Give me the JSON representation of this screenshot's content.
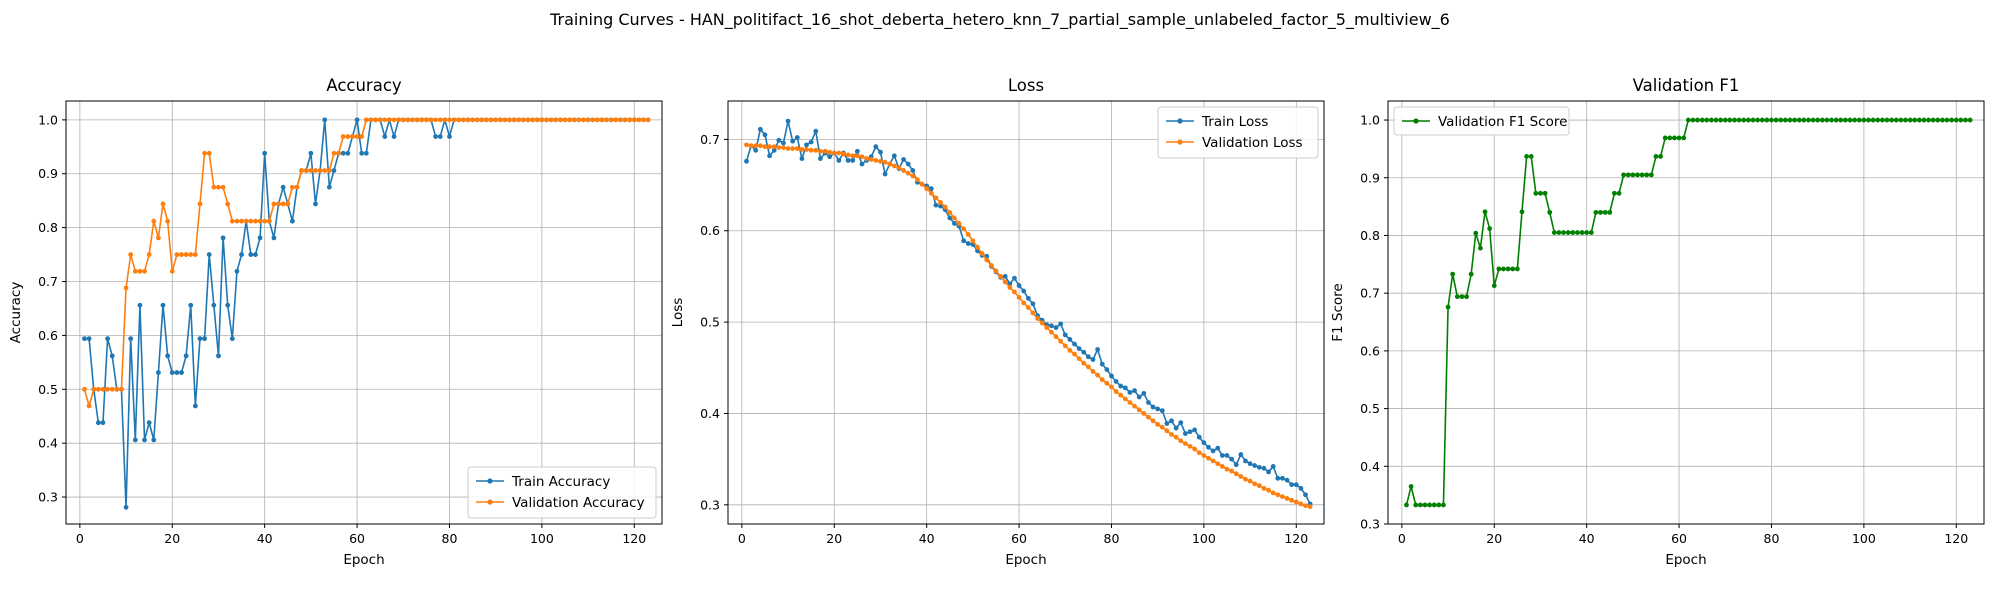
{
  "suptitle": "Training Curves - HAN_politifact_16_shot_deberta_hetero_knn_7_partial_sample_unlabeled_factor_5_multiview_6",
  "chart_data": [
    {
      "type": "line",
      "title": "Accuracy",
      "xlabel": "Epoch",
      "ylabel": "Accuracy",
      "xlim": [
        -3,
        126
      ],
      "ylim": [
        0.25,
        1.035
      ],
      "xticks": [
        0,
        20,
        40,
        60,
        80,
        100,
        120
      ],
      "yticks": [
        0.3,
        0.4,
        0.5,
        0.6,
        0.7,
        0.8,
        0.9,
        1.0
      ],
      "grid": true,
      "legend": "lower-right",
      "x": [
        1,
        2,
        3,
        4,
        5,
        6,
        7,
        8,
        9,
        10,
        11,
        12,
        13,
        14,
        15,
        16,
        17,
        18,
        19,
        20,
        21,
        22,
        23,
        24,
        25,
        26,
        27,
        28,
        29,
        30,
        31,
        32,
        33,
        34,
        35,
        36,
        37,
        38,
        39,
        40,
        41,
        42,
        43,
        44,
        45,
        46,
        47,
        48,
        49,
        50,
        51,
        52,
        53,
        54,
        55,
        56,
        57,
        58,
        59,
        60,
        61,
        62,
        63,
        64,
        65,
        66,
        67,
        68,
        69,
        70,
        71,
        72,
        73,
        74,
        75,
        76,
        77,
        78,
        79,
        80,
        81,
        82,
        83,
        84,
        85,
        86,
        87,
        88,
        89,
        90,
        91,
        92,
        93,
        94,
        95,
        96,
        97,
        98,
        99,
        100,
        101,
        102,
        103,
        104,
        105,
        106,
        107,
        108,
        109,
        110,
        111,
        112,
        113,
        114,
        115,
        116,
        117,
        118,
        119,
        120,
        121,
        122,
        123
      ],
      "series": [
        {
          "name": "Train Accuracy",
          "color": "#1f77b4",
          "values": [
            0.594,
            0.594,
            0.5,
            0.438,
            0.438,
            0.594,
            0.562,
            0.5,
            0.5,
            0.281,
            0.594,
            0.406,
            0.656,
            0.406,
            0.438,
            0.406,
            0.531,
            0.656,
            0.562,
            0.531,
            0.531,
            0.531,
            0.562,
            0.656,
            0.469,
            0.594,
            0.594,
            0.75,
            0.656,
            0.562,
            0.781,
            0.656,
            0.594,
            0.719,
            0.75,
            0.812,
            0.75,
            0.75,
            0.781,
            0.938,
            0.812,
            0.781,
            0.844,
            0.875,
            0.844,
            0.812,
            0.875,
            0.906,
            0.906,
            0.938,
            0.844,
            0.906,
            1.0,
            0.875,
            0.906,
            0.938,
            0.938,
            0.938,
            0.969,
            1.0,
            0.938,
            0.938,
            1.0,
            1.0,
            1.0,
            0.969,
            1.0,
            0.969,
            1.0,
            1.0,
            1.0,
            1.0,
            1.0,
            1.0,
            1.0,
            1.0,
            0.969,
            0.969,
            1.0,
            0.969,
            1.0,
            1.0,
            1.0,
            1.0,
            1.0,
            1.0,
            1.0,
            1.0,
            1.0,
            1.0,
            1.0,
            1.0,
            1.0,
            1.0,
            1.0,
            1.0,
            1.0,
            1.0,
            1.0,
            1.0,
            1.0,
            1.0,
            1.0,
            1.0,
            1.0,
            1.0,
            1.0,
            1.0,
            1.0,
            1.0,
            1.0,
            1.0,
            1.0,
            1.0,
            1.0,
            1.0,
            1.0,
            1.0,
            1.0,
            1.0,
            1.0,
            1.0,
            1.0
          ]
        },
        {
          "name": "Validation Accuracy",
          "color": "#ff7f0e",
          "values": [
            0.5,
            0.469,
            0.5,
            0.5,
            0.5,
            0.5,
            0.5,
            0.5,
            0.5,
            0.688,
            0.75,
            0.719,
            0.719,
            0.719,
            0.75,
            0.812,
            0.781,
            0.844,
            0.812,
            0.719,
            0.75,
            0.75,
            0.75,
            0.75,
            0.75,
            0.844,
            0.938,
            0.938,
            0.875,
            0.875,
            0.875,
            0.844,
            0.812,
            0.812,
            0.812,
            0.812,
            0.812,
            0.812,
            0.812,
            0.812,
            0.812,
            0.844,
            0.844,
            0.844,
            0.844,
            0.875,
            0.875,
            0.906,
            0.906,
            0.906,
            0.906,
            0.906,
            0.906,
            0.906,
            0.938,
            0.938,
            0.969,
            0.969,
            0.969,
            0.969,
            0.969,
            1.0,
            1.0,
            1.0,
            1.0,
            1.0,
            1.0,
            1.0,
            1.0,
            1.0,
            1.0,
            1.0,
            1.0,
            1.0,
            1.0,
            1.0,
            1.0,
            1.0,
            1.0,
            1.0,
            1.0,
            1.0,
            1.0,
            1.0,
            1.0,
            1.0,
            1.0,
            1.0,
            1.0,
            1.0,
            1.0,
            1.0,
            1.0,
            1.0,
            1.0,
            1.0,
            1.0,
            1.0,
            1.0,
            1.0,
            1.0,
            1.0,
            1.0,
            1.0,
            1.0,
            1.0,
            1.0,
            1.0,
            1.0,
            1.0,
            1.0,
            1.0,
            1.0,
            1.0,
            1.0,
            1.0,
            1.0,
            1.0,
            1.0,
            1.0,
            1.0,
            1.0,
            1.0
          ]
        }
      ]
    },
    {
      "type": "line",
      "title": "Loss",
      "xlabel": "Epoch",
      "ylabel": "Loss",
      "xlim": [
        -3,
        126
      ],
      "ylim": [
        0.279,
        0.742
      ],
      "xticks": [
        0,
        20,
        40,
        60,
        80,
        100,
        120
      ],
      "yticks": [
        0.3,
        0.4,
        0.5,
        0.6,
        0.7
      ],
      "grid": true,
      "legend": "upper-right",
      "x": [
        1,
        2,
        3,
        4,
        5,
        6,
        7,
        8,
        9,
        10,
        11,
        12,
        13,
        14,
        15,
        16,
        17,
        18,
        19,
        20,
        21,
        22,
        23,
        24,
        25,
        26,
        27,
        28,
        29,
        30,
        31,
        32,
        33,
        34,
        35,
        36,
        37,
        38,
        39,
        40,
        41,
        42,
        43,
        44,
        45,
        46,
        47,
        48,
        49,
        50,
        51,
        52,
        53,
        54,
        55,
        56,
        57,
        58,
        59,
        60,
        61,
        62,
        63,
        64,
        65,
        66,
        67,
        68,
        69,
        70,
        71,
        72,
        73,
        74,
        75,
        76,
        77,
        78,
        79,
        80,
        81,
        82,
        83,
        84,
        85,
        86,
        87,
        88,
        89,
        90,
        91,
        92,
        93,
        94,
        95,
        96,
        97,
        98,
        99,
        100,
        101,
        102,
        103,
        104,
        105,
        106,
        107,
        108,
        109,
        110,
        111,
        112,
        113,
        114,
        115,
        116,
        117,
        118,
        119,
        120,
        121,
        122,
        123
      ],
      "series": [
        {
          "name": "Train Loss",
          "color": "#1f77b4",
          "values": [
            0.676,
            0.693,
            0.688,
            0.711,
            0.705,
            0.682,
            0.688,
            0.699,
            0.696,
            0.72,
            0.698,
            0.702,
            0.679,
            0.694,
            0.697,
            0.709,
            0.679,
            0.685,
            0.681,
            0.685,
            0.677,
            0.685,
            0.677,
            0.677,
            0.687,
            0.673,
            0.677,
            0.681,
            0.692,
            0.686,
            0.662,
            0.673,
            0.682,
            0.668,
            0.678,
            0.673,
            0.666,
            0.653,
            0.651,
            0.649,
            0.646,
            0.628,
            0.627,
            0.623,
            0.614,
            0.608,
            0.605,
            0.589,
            0.586,
            0.585,
            0.578,
            0.573,
            0.572,
            0.561,
            0.555,
            0.549,
            0.55,
            0.542,
            0.548,
            0.54,
            0.534,
            0.526,
            0.52,
            0.507,
            0.502,
            0.497,
            0.496,
            0.494,
            0.498,
            0.486,
            0.481,
            0.476,
            0.471,
            0.467,
            0.462,
            0.459,
            0.47,
            0.454,
            0.448,
            0.441,
            0.435,
            0.43,
            0.428,
            0.423,
            0.425,
            0.418,
            0.422,
            0.412,
            0.407,
            0.405,
            0.403,
            0.389,
            0.392,
            0.384,
            0.39,
            0.378,
            0.38,
            0.382,
            0.374,
            0.368,
            0.363,
            0.359,
            0.362,
            0.354,
            0.354,
            0.35,
            0.344,
            0.355,
            0.348,
            0.345,
            0.343,
            0.341,
            0.34,
            0.336,
            0.342,
            0.329,
            0.329,
            0.327,
            0.322,
            0.322,
            0.318,
            0.311,
            0.301
          ]
        },
        {
          "name": "Validation Loss",
          "color": "#ff7f0e",
          "values": [
            0.694,
            0.693,
            0.693,
            0.693,
            0.692,
            0.692,
            0.692,
            0.691,
            0.691,
            0.69,
            0.69,
            0.69,
            0.689,
            0.689,
            0.688,
            0.688,
            0.687,
            0.687,
            0.686,
            0.685,
            0.685,
            0.684,
            0.683,
            0.682,
            0.682,
            0.681,
            0.679,
            0.678,
            0.677,
            0.676,
            0.675,
            0.673,
            0.671,
            0.669,
            0.666,
            0.663,
            0.66,
            0.656,
            0.651,
            0.646,
            0.641,
            0.636,
            0.631,
            0.626,
            0.62,
            0.614,
            0.608,
            0.602,
            0.596,
            0.589,
            0.582,
            0.575,
            0.568,
            0.562,
            0.556,
            0.55,
            0.544,
            0.538,
            0.533,
            0.527,
            0.521,
            0.516,
            0.51,
            0.504,
            0.499,
            0.494,
            0.489,
            0.484,
            0.479,
            0.474,
            0.469,
            0.465,
            0.46,
            0.455,
            0.451,
            0.446,
            0.442,
            0.437,
            0.433,
            0.429,
            0.424,
            0.42,
            0.416,
            0.412,
            0.408,
            0.404,
            0.4,
            0.396,
            0.392,
            0.388,
            0.385,
            0.381,
            0.377,
            0.374,
            0.37,
            0.367,
            0.364,
            0.361,
            0.357,
            0.354,
            0.351,
            0.348,
            0.345,
            0.342,
            0.339,
            0.337,
            0.334,
            0.331,
            0.328,
            0.326,
            0.323,
            0.321,
            0.318,
            0.316,
            0.313,
            0.311,
            0.309,
            0.307,
            0.305,
            0.303,
            0.301,
            0.299,
            0.298
          ]
        }
      ]
    },
    {
      "type": "line",
      "title": "Validation F1",
      "xlabel": "Epoch",
      "ylabel": "F1 Score",
      "xlim": [
        -3,
        126
      ],
      "ylim": [
        0.3,
        1.033
      ],
      "xticks": [
        0,
        20,
        40,
        60,
        80,
        100,
        120
      ],
      "yticks": [
        0.3,
        0.4,
        0.5,
        0.6,
        0.7,
        0.8,
        0.9,
        1.0
      ],
      "grid": true,
      "legend": "upper-left",
      "x": [
        1,
        2,
        3,
        4,
        5,
        6,
        7,
        8,
        9,
        10,
        11,
        12,
        13,
        14,
        15,
        16,
        17,
        18,
        19,
        20,
        21,
        22,
        23,
        24,
        25,
        26,
        27,
        28,
        29,
        30,
        31,
        32,
        33,
        34,
        35,
        36,
        37,
        38,
        39,
        40,
        41,
        42,
        43,
        44,
        45,
        46,
        47,
        48,
        49,
        50,
        51,
        52,
        53,
        54,
        55,
        56,
        57,
        58,
        59,
        60,
        61,
        62,
        63,
        64,
        65,
        66,
        67,
        68,
        69,
        70,
        71,
        72,
        73,
        74,
        75,
        76,
        77,
        78,
        79,
        80,
        81,
        82,
        83,
        84,
        85,
        86,
        87,
        88,
        89,
        90,
        91,
        92,
        93,
        94,
        95,
        96,
        97,
        98,
        99,
        100,
        101,
        102,
        103,
        104,
        105,
        106,
        107,
        108,
        109,
        110,
        111,
        112,
        113,
        114,
        115,
        116,
        117,
        118,
        119,
        120,
        121,
        122,
        123
      ],
      "series": [
        {
          "name": "Validation F1 Score",
          "color": "#008000",
          "values": [
            0.333,
            0.365,
            0.333,
            0.333,
            0.333,
            0.333,
            0.333,
            0.333,
            0.333,
            0.676,
            0.733,
            0.694,
            0.694,
            0.694,
            0.733,
            0.804,
            0.778,
            0.841,
            0.812,
            0.713,
            0.742,
            0.742,
            0.742,
            0.742,
            0.742,
            0.841,
            0.937,
            0.937,
            0.873,
            0.873,
            0.873,
            0.84,
            0.805,
            0.805,
            0.805,
            0.805,
            0.805,
            0.805,
            0.805,
            0.805,
            0.805,
            0.84,
            0.84,
            0.84,
            0.84,
            0.873,
            0.873,
            0.905,
            0.905,
            0.905,
            0.905,
            0.905,
            0.905,
            0.905,
            0.937,
            0.937,
            0.969,
            0.969,
            0.969,
            0.969,
            0.969,
            1.0,
            1.0,
            1.0,
            1.0,
            1.0,
            1.0,
            1.0,
            1.0,
            1.0,
            1.0,
            1.0,
            1.0,
            1.0,
            1.0,
            1.0,
            1.0,
            1.0,
            1.0,
            1.0,
            1.0,
            1.0,
            1.0,
            1.0,
            1.0,
            1.0,
            1.0,
            1.0,
            1.0,
            1.0,
            1.0,
            1.0,
            1.0,
            1.0,
            1.0,
            1.0,
            1.0,
            1.0,
            1.0,
            1.0,
            1.0,
            1.0,
            1.0,
            1.0,
            1.0,
            1.0,
            1.0,
            1.0,
            1.0,
            1.0,
            1.0,
            1.0,
            1.0,
            1.0,
            1.0,
            1.0,
            1.0,
            1.0,
            1.0,
            1.0,
            1.0,
            1.0,
            1.0
          ]
        }
      ]
    }
  ]
}
